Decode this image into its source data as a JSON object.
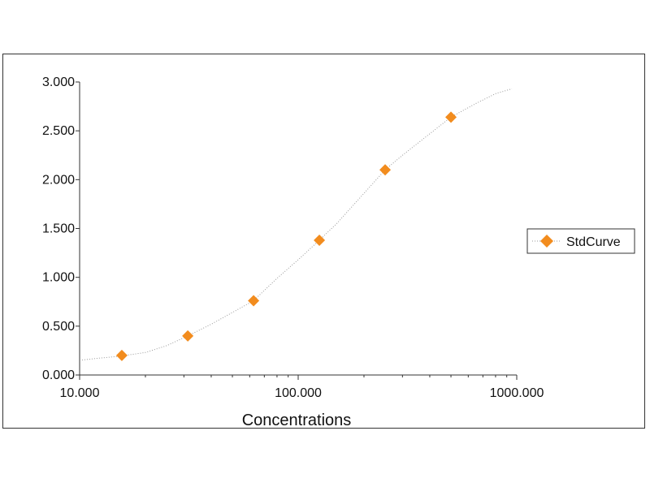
{
  "chart_data": {
    "type": "scatter",
    "title": "",
    "xlabel": "Concentrations",
    "ylabel": "",
    "x_scale": "log",
    "xlim": [
      10,
      1000
    ],
    "ylim": [
      0,
      3
    ],
    "x_ticks": [
      10,
      100,
      1000
    ],
    "x_tick_labels": [
      "10.000",
      "100.000",
      "1000.000"
    ],
    "y_ticks": [
      0,
      0.5,
      1,
      1.5,
      2,
      2.5,
      3
    ],
    "y_tick_labels": [
      "0.000",
      "0.500",
      "1.000",
      "1.500",
      "2.000",
      "2.500",
      "3.000"
    ],
    "grid": false,
    "legend_position": "right",
    "series": [
      {
        "name": "StdCurve",
        "marker": "diamond",
        "color": "#f28c1e",
        "fit_line": "dotted",
        "fit_line_color": "#999999",
        "x": [
          15.6,
          31.25,
          62.5,
          125,
          250,
          500
        ],
        "y": [
          0.2,
          0.4,
          0.76,
          1.38,
          2.1,
          2.64
        ]
      }
    ],
    "fit_curve": {
      "x": [
        10,
        12,
        15,
        20,
        25,
        31.25,
        40,
        50,
        62.5,
        80,
        100,
        125,
        150,
        200,
        250,
        300,
        400,
        500,
        650,
        800,
        950
      ],
      "y": [
        0.15,
        0.17,
        0.19,
        0.23,
        0.3,
        0.4,
        0.52,
        0.64,
        0.76,
        0.99,
        1.18,
        1.38,
        1.55,
        1.86,
        2.1,
        2.25,
        2.47,
        2.64,
        2.78,
        2.88,
        2.93
      ]
    }
  }
}
